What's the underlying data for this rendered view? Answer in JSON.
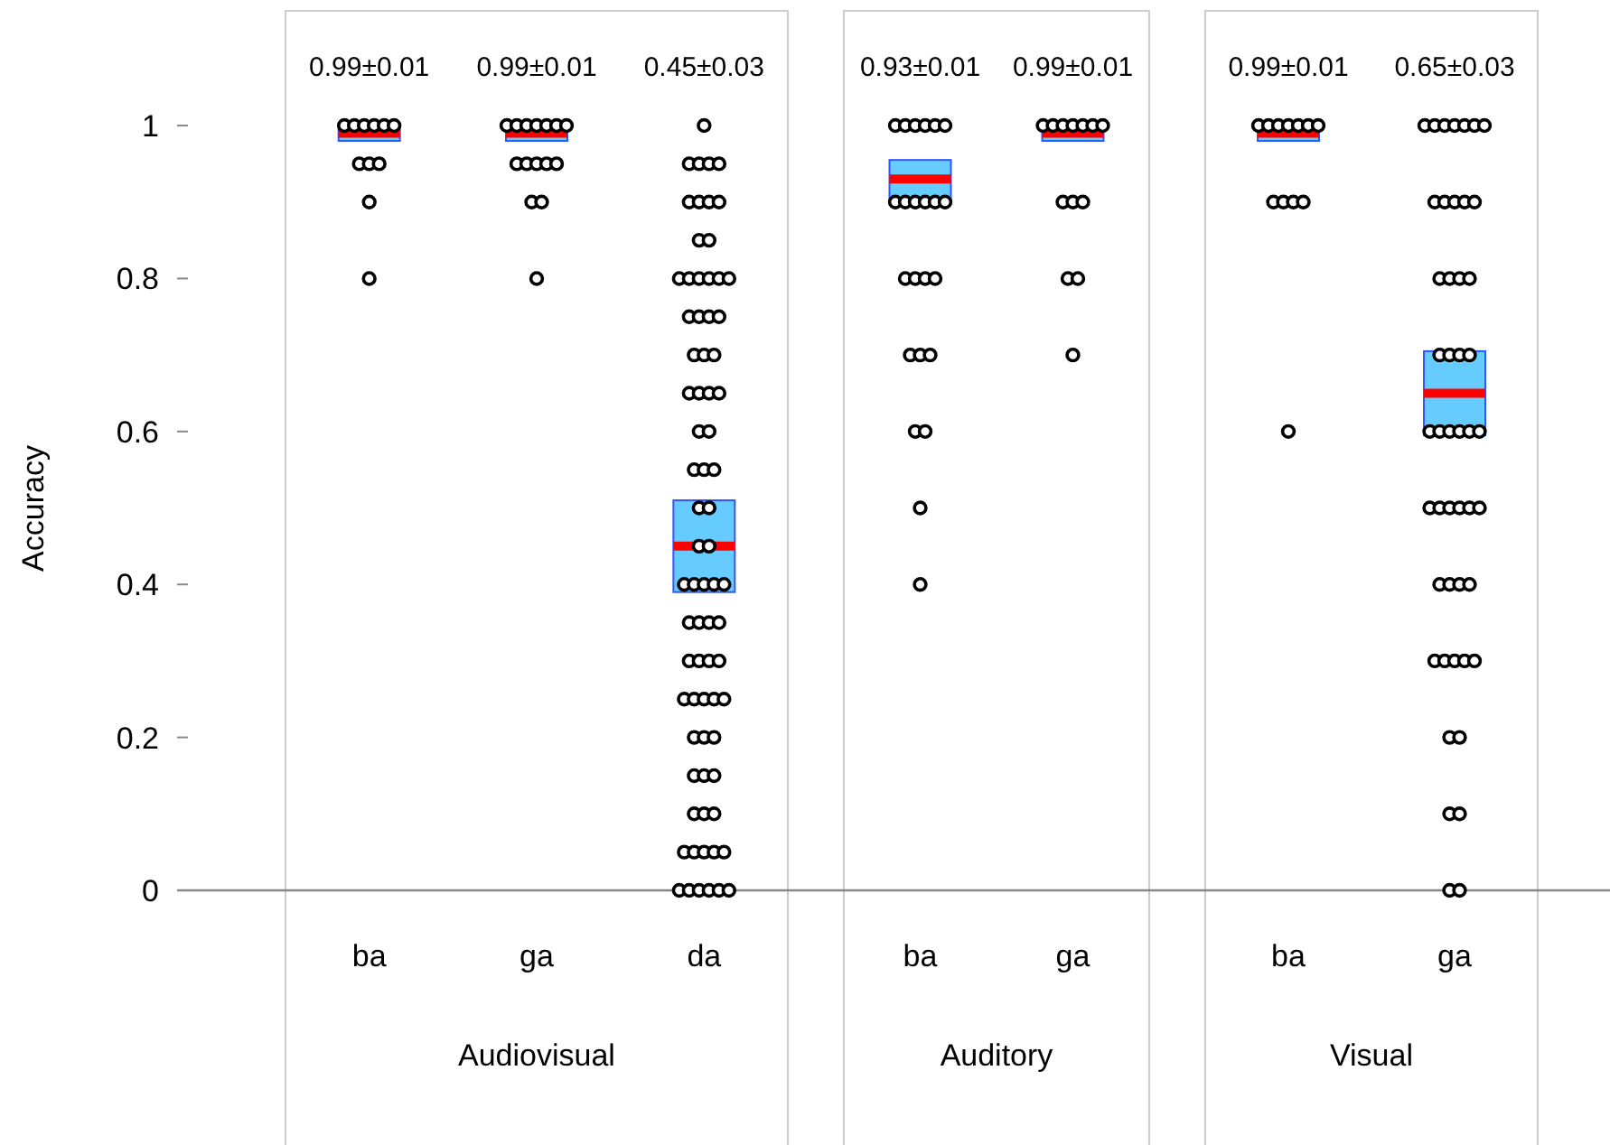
{
  "chart_data": [
    {
      "type": "scatter",
      "xlabel": "Audiovisual",
      "ylabel": "Accuracy",
      "categories": [
        "ba",
        "ga",
        "da"
      ],
      "ylim": [
        0,
        1.15
      ],
      "yticks": [
        0,
        0.2,
        0.4,
        0.6,
        0.8,
        1
      ],
      "series": [
        {
          "color": "#000000",
          "marker": "circle",
          "x": [
            "ba",
            "ba",
            "ba",
            "ba",
            "ba",
            "ba",
            "ba",
            "ba",
            "ba",
            "ba",
            "ba"
          ],
          "values": [
            1,
            1,
            1,
            1,
            1,
            1,
            0.95,
            0.95,
            0.95,
            0.9,
            0.8
          ]
        },
        {
          "color": "#000000",
          "marker": "circle",
          "x": [
            "ga",
            "ga",
            "ga",
            "ga",
            "ga",
            "ga",
            "ga",
            "ga",
            "ga",
            "ga",
            "ga",
            "ga",
            "ga",
            "ga",
            "ga"
          ],
          "values": [
            1,
            1,
            1,
            1,
            1,
            1,
            1,
            0.95,
            0.95,
            0.95,
            0.95,
            0.95,
            0.9,
            0.9,
            0.8
          ]
        },
        {
          "color": "#000000",
          "marker": "circle",
          "x": [
            "da",
            "da",
            "da",
            "da",
            "da",
            "da",
            "da",
            "da",
            "da",
            "da",
            "da",
            "da",
            "da",
            "da",
            "da",
            "da",
            "da",
            "da",
            "da",
            "da",
            "da",
            "da",
            "da",
            "da",
            "da",
            "da",
            "da",
            "da",
            "da",
            "da",
            "da",
            "da",
            "da",
            "da",
            "da",
            "da",
            "da",
            "da",
            "da",
            "da",
            "da",
            "da",
            "da",
            "da",
            "da",
            "da",
            "da",
            "da",
            "da",
            "da",
            "da",
            "da",
            "da",
            "da",
            "da",
            "da",
            "da",
            "da",
            "da",
            "da",
            "da",
            "da",
            "da",
            "da",
            "da",
            "da",
            "da",
            "da",
            "da",
            "da",
            "da",
            "da",
            "da",
            "da",
            "da"
          ],
          "values": [
            1,
            0.95,
            0.95,
            0.95,
            0.95,
            0.9,
            0.9,
            0.9,
            0.9,
            0.85,
            0.85,
            0.8,
            0.8,
            0.8,
            0.8,
            0.8,
            0.8,
            0.75,
            0.75,
            0.75,
            0.75,
            0.7,
            0.7,
            0.7,
            0.65,
            0.65,
            0.65,
            0.65,
            0.6,
            0.6,
            0.55,
            0.55,
            0.55,
            0.5,
            0.5,
            0.45,
            0.45,
            0.4,
            0.4,
            0.4,
            0.4,
            0.4,
            0.35,
            0.35,
            0.35,
            0.35,
            0.3,
            0.3,
            0.3,
            0.3,
            0.25,
            0.25,
            0.25,
            0.25,
            0.25,
            0.2,
            0.2,
            0.2,
            0.15,
            0.15,
            0.15,
            0.1,
            0.1,
            0.1,
            0.05,
            0.05,
            0.05,
            0.05,
            0.05,
            0,
            0,
            0,
            0,
            0,
            0
          ]
        },
        {
          "type": "box",
          "color": "#66ccff",
          "boxes": [
            {
              "low": 0.98,
              "q1": 0.98,
              "median": 0.99,
              "q3": 1.0,
              "high": 1.0
            },
            {
              "low": 0.98,
              "q1": 0.98,
              "median": 0.99,
              "q3": 1.0,
              "high": 1.0
            },
            {
              "low": 0.39,
              "q1": 0.39,
              "median": 0.45,
              "q3": 0.51,
              "high": 0.51
            }
          ]
        }
      ],
      "annotations": [
        "0.99±0.01",
        "0.99±0.01",
        "0.45±0.03"
      ]
    },
    {
      "type": "scatter",
      "xlabel": "Auditory",
      "categories": [
        "ba",
        "ga"
      ],
      "ylim": [
        0,
        1.15
      ],
      "tick_labels": "x",
      "series": [
        {
          "color": "#000000",
          "marker": "circle",
          "x": [
            "ba",
            "ba",
            "ba",
            "ba",
            "ba",
            "ba",
            "ba",
            "ba",
            "ba",
            "ba",
            "ba",
            "ba",
            "ba",
            "ba",
            "ba",
            "ba",
            "ba",
            "ba",
            "ba",
            "ba",
            "ba",
            "ba",
            "ba"
          ],
          "values": [
            1,
            1,
            1,
            1,
            1,
            1,
            0.9,
            0.9,
            0.9,
            0.9,
            0.9,
            0.9,
            0.8,
            0.8,
            0.8,
            0.8,
            0.7,
            0.7,
            0.7,
            0.6,
            0.6,
            0.5,
            0.4
          ]
        },
        {
          "color": "#000000",
          "marker": "circle",
          "x": [
            "ga",
            "ga",
            "ga",
            "ga",
            "ga",
            "ga",
            "ga",
            "ga",
            "ga",
            "ga",
            "ga",
            "ga",
            "ga"
          ],
          "values": [
            1,
            1,
            1,
            1,
            1,
            1,
            1,
            0.9,
            0.9,
            0.9,
            0.8,
            0.8,
            0.7
          ]
        },
        {
          "type": "box",
          "color": "#66ccff",
          "boxes": [
            {
              "low": 0.905,
              "q1": 0.905,
              "median": 0.93,
              "q3": 0.955,
              "high": 0.955
            },
            {
              "low": 0.98,
              "q1": 0.98,
              "median": 0.99,
              "q3": 1.0,
              "high": 1.0
            }
          ]
        }
      ],
      "annotations": [
        "0.93±0.01",
        "0.99±0.01"
      ]
    },
    {
      "type": "scatter",
      "xlabel": "Visual",
      "categories": [
        "ba",
        "ga"
      ],
      "ylim": [
        0,
        1.15
      ],
      "tick_labels": "x",
      "series": [
        {
          "color": "#000000",
          "marker": "circle",
          "x": [
            "ba",
            "ba",
            "ba",
            "ba",
            "ba",
            "ba",
            "ba",
            "ba",
            "ba",
            "ba",
            "ba",
            "ba"
          ],
          "values": [
            1,
            1,
            1,
            1,
            1,
            1,
            1,
            0.9,
            0.9,
            0.9,
            0.9,
            0.6
          ]
        },
        {
          "color": "#000000",
          "marker": "circle",
          "x": [
            "ga",
            "ga",
            "ga",
            "ga",
            "ga",
            "ga",
            "ga",
            "ga",
            "ga",
            "ga",
            "ga",
            "ga",
            "ga",
            "ga",
            "ga",
            "ga",
            "ga",
            "ga",
            "ga",
            "ga",
            "ga",
            "ga",
            "ga",
            "ga",
            "ga",
            "ga",
            "ga",
            "ga",
            "ga",
            "ga",
            "ga",
            "ga",
            "ga",
            "ga",
            "ga",
            "ga",
            "ga",
            "ga",
            "ga",
            "ga",
            "ga",
            "ga",
            "ga",
            "ga",
            "ga",
            "ga",
            "ga"
          ],
          "values": [
            1,
            1,
            1,
            1,
            1,
            1,
            1,
            0.9,
            0.9,
            0.9,
            0.9,
            0.9,
            0.8,
            0.8,
            0.8,
            0.8,
            0.7,
            0.7,
            0.7,
            0.7,
            0.6,
            0.6,
            0.6,
            0.6,
            0.6,
            0.6,
            0.5,
            0.5,
            0.5,
            0.5,
            0.5,
            0.5,
            0.4,
            0.4,
            0.4,
            0.4,
            0.3,
            0.3,
            0.3,
            0.3,
            0.3,
            0.2,
            0.2,
            0.1,
            0.1,
            0,
            0
          ]
        },
        {
          "type": "box",
          "color": "#66ccff",
          "boxes": [
            {
              "low": 0.98,
              "q1": 0.98,
              "median": 0.99,
              "q3": 1.0,
              "high": 1.0
            },
            {
              "low": 0.595,
              "q1": 0.595,
              "median": 0.65,
              "q3": 0.705,
              "high": 0.705
            }
          ]
        }
      ],
      "annotations": [
        "0.99±0.01",
        "0.65±0.03"
      ]
    }
  ]
}
